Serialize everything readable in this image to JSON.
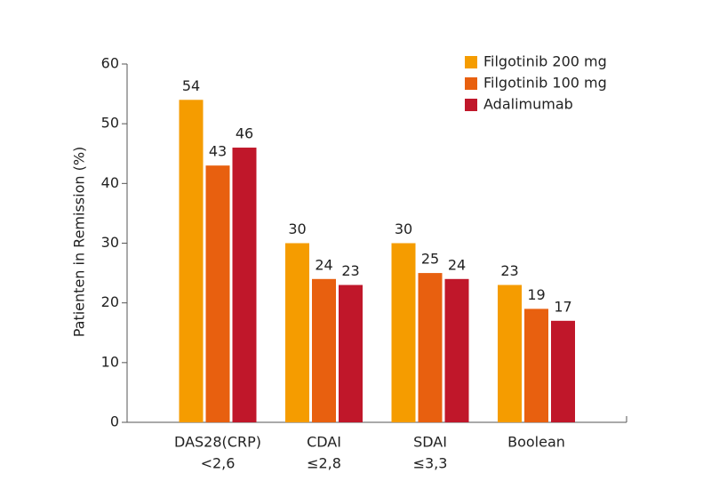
{
  "chart_data": {
    "type": "bar",
    "y_label": "Patienten in Remission (%)",
    "categories": [
      [
        "DAS28(CRP)",
        "<2,6"
      ],
      [
        "CDAI",
        "≤2,8"
      ],
      [
        "SDAI",
        "≤3,3"
      ],
      [
        "Boolean"
      ]
    ],
    "series": [
      {
        "name": "Filgotinib 200 mg",
        "color": "#f59c00",
        "values": [
          54,
          30,
          30,
          23
        ]
      },
      {
        "name": "Filgotinib 100 mg",
        "color": "#e8600f",
        "values": [
          43,
          24,
          25,
          19
        ]
      },
      {
        "name": "Adalimumab",
        "color": "#c0172a",
        "values": [
          46,
          23,
          24,
          17
        ]
      }
    ],
    "ylim": [
      0,
      60
    ],
    "yticks": [
      0,
      10,
      20,
      30,
      40,
      50,
      60
    ],
    "grid": false,
    "legend": "upper right"
  }
}
